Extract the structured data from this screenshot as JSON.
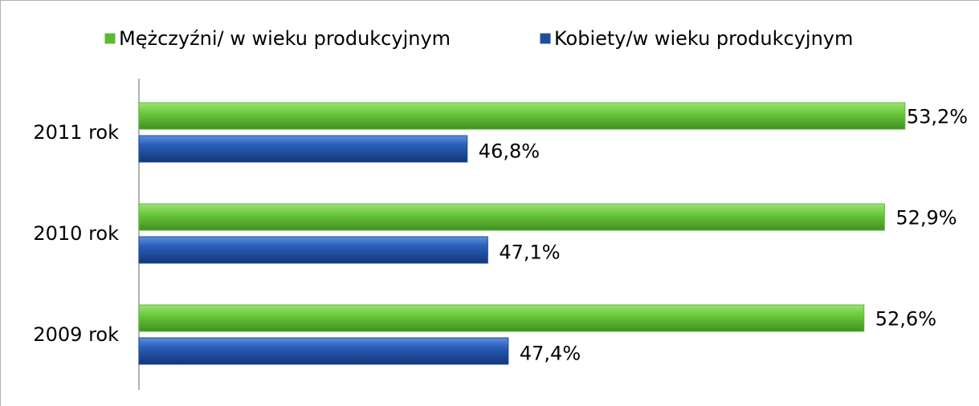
{
  "chart_data": {
    "type": "hbar",
    "categories": [
      "2011 rok",
      "2010 rok",
      "2009 rok"
    ],
    "series": [
      {
        "name": "Mężczyźni/ w wieku produkcyjnym",
        "color": "#5db833",
        "values": [
          53.2,
          52.9,
          52.6
        ],
        "value_labels": [
          "53,2%",
          "52,9%",
          "52,6%"
        ]
      },
      {
        "name": "Kobiety/w wieku produkcyjnym",
        "color": "#1f4e9e",
        "values": [
          46.8,
          47.1,
          47.4
        ],
        "value_labels": [
          "46,8%",
          "47,1%",
          "47,4%"
        ]
      }
    ],
    "xlim": [
      42,
      54
    ],
    "legend": "top"
  }
}
